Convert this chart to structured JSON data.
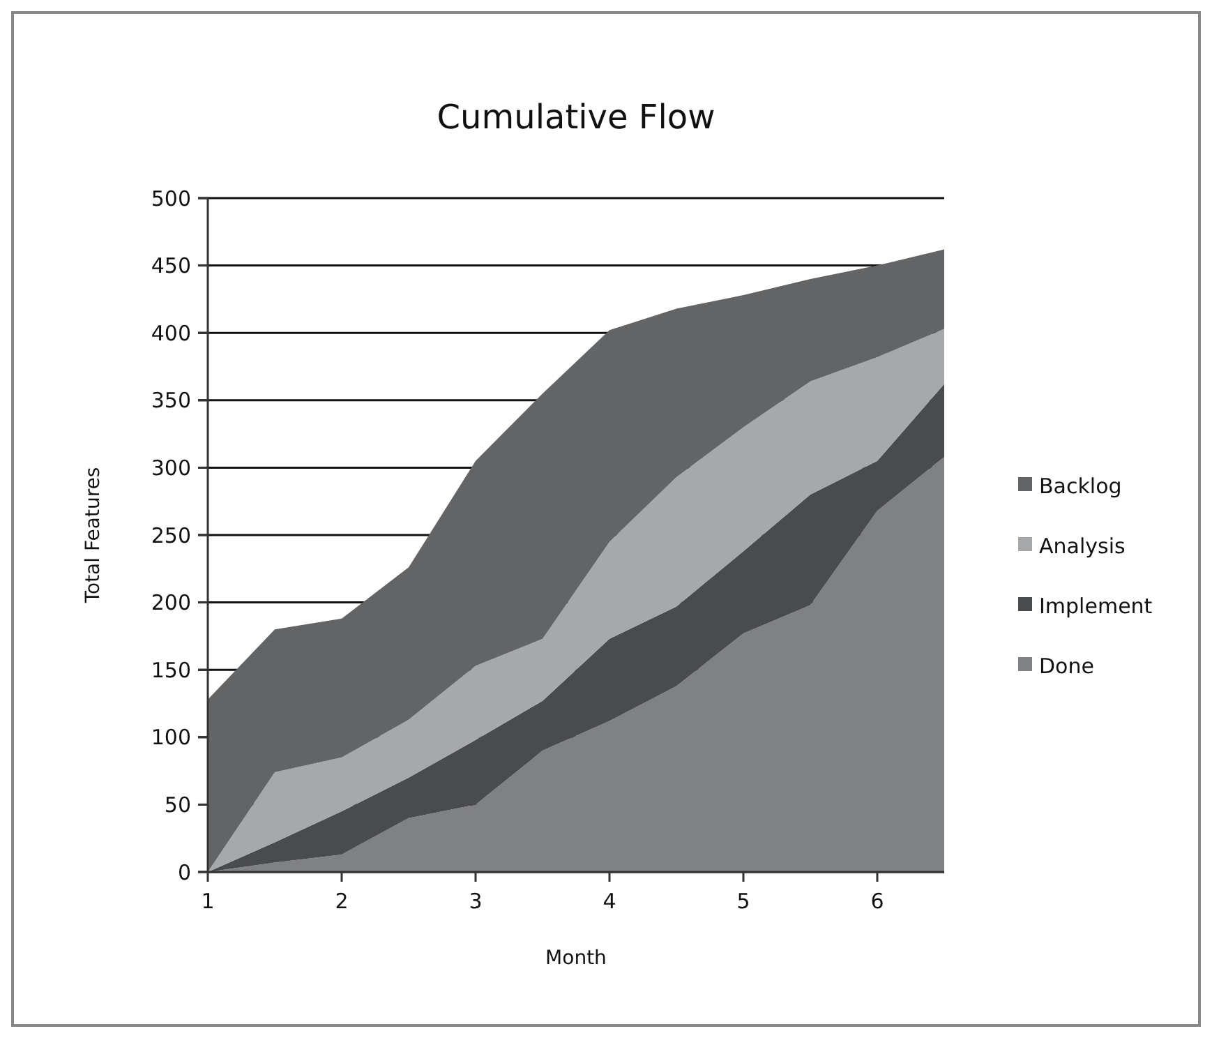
{
  "chart_data": {
    "type": "area",
    "stacked": true,
    "title": "Cumulative Flow",
    "xlabel": "Month",
    "ylabel": "Total Features",
    "x": [
      1,
      1.5,
      2,
      2.5,
      3,
      3.5,
      4,
      4.5,
      5,
      5.5,
      6,
      6.5
    ],
    "xlim": [
      1,
      6.5
    ],
    "xticks": [
      1,
      2,
      3,
      4,
      5,
      6
    ],
    "ylim": [
      0,
      500
    ],
    "yticks": [
      0,
      50,
      100,
      150,
      200,
      250,
      300,
      350,
      400,
      450,
      500
    ],
    "grid": "y",
    "legend": "right",
    "series": [
      {
        "name": "Done",
        "color": "#808184",
        "values": [
          0,
          7,
          13,
          40,
          50,
          90,
          112,
          138,
          177,
          198,
          268,
          308
        ]
      },
      {
        "name": "Implement",
        "color": "#4a4b4d",
        "values": [
          0,
          15,
          32,
          30,
          48,
          37,
          61,
          59,
          61,
          82,
          37,
          54
        ]
      },
      {
        "name": "Analysis",
        "color": "#a7a8aa",
        "values": [
          0,
          52,
          40,
          43,
          55,
          46,
          72,
          96,
          92,
          84,
          77,
          41
        ]
      },
      {
        "name": "Backlog",
        "color": "#636466",
        "values": [
          128,
          106,
          103,
          113,
          152,
          182,
          157,
          125,
          98,
          76,
          68,
          59
        ]
      }
    ]
  }
}
